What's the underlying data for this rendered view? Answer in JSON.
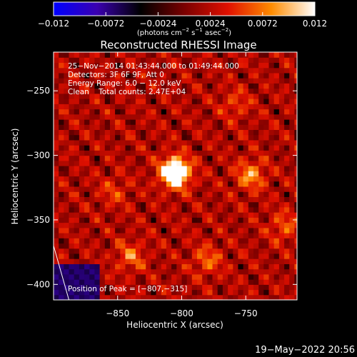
{
  "chart_data": {
    "type": "heatmap",
    "title": "Reconstructed RHESSI Image",
    "xlabel": "Heliocentric X (arcsec)",
    "ylabel": "Heliocentric Y (arcsec)",
    "xlim": [
      -900,
      -710
    ],
    "ylim": [
      -412,
      -220
    ],
    "x_ticks": [
      -850,
      -800,
      -750
    ],
    "x_tick_labels": [
      "−850",
      "−800",
      "−750"
    ],
    "y_ticks": [
      -250,
      -300,
      -350,
      -400
    ],
    "y_tick_labels": [
      "−250",
      "−300",
      "−350",
      "−400"
    ],
    "colorbar": {
      "range": [
        -0.012,
        0.012
      ],
      "ticks": [
        -0.012,
        -0.0072,
        -0.0024,
        0.0024,
        0.0072,
        0.012
      ],
      "tick_labels": [
        "−0.012",
        "−0.0072",
        "−0.0024",
        "0.0024",
        "0.0072",
        "0.012"
      ],
      "unit_parts": [
        "(photons cm",
        "−2",
        " s",
        "−1",
        " asec",
        "−2",
        ")"
      ],
      "colors": [
        "#0000ff",
        "#3a00b0",
        "#000000",
        "#7a0000",
        "#e01000",
        "#ff8c00",
        "#ffffff"
      ]
    },
    "info_lines": [
      "25−Nov−2014 01:43:44.000 to 01:49:44.000",
      "Detectors: 3F 6F 9F, Att 0",
      "Energy Range: 6.0 − 12.0 keV",
      "Clean    Total counts: 2.47E+04"
    ],
    "peak_label": "Position of Peak = [−807,−315]",
    "peak": [
      -807,
      -315
    ],
    "sources": [
      {
        "x": -807,
        "y": -315,
        "amp": 1.0
      },
      {
        "x": -748,
        "y": -317,
        "amp": 0.42
      },
      {
        "x": -842,
        "y": -380,
        "amp": 0.32
      },
      {
        "x": -782,
        "y": -383,
        "amp": 0.3
      },
      {
        "x": -722,
        "y": -357,
        "amp": 0.28
      },
      {
        "x": -760,
        "y": -262,
        "amp": 0.22
      },
      {
        "x": -855,
        "y": -330,
        "amp": 0.2
      }
    ],
    "limb_line": [
      [
        -900,
        -370
      ],
      [
        -888,
        -412
      ]
    ]
  },
  "footer_date": "19−May−2022 20:56"
}
